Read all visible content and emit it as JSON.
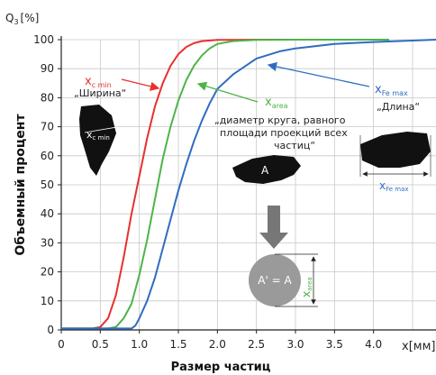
{
  "chart_data": {
    "type": "line",
    "y_axis_label": "Q",
    "y_axis_label_sub": "3",
    "y_axis_unit": "[%]",
    "y_title": "Объемный процент",
    "x_title": "Размер частиц",
    "x_unit_label": "x[мм]",
    "xlim": [
      0,
      4.8
    ],
    "ylim": [
      0,
      100
    ],
    "x_ticks": [
      "0",
      "0.5",
      "1.0",
      "1.5",
      "2.0",
      "2.5",
      "3.0",
      "3.5",
      "4.0"
    ],
    "y_ticks": [
      "0",
      "10",
      "20",
      "30",
      "40",
      "50",
      "60",
      "70",
      "80",
      "90",
      "100"
    ],
    "grid": true,
    "series": [
      {
        "name": "xc min",
        "color": "#e8302f",
        "points": [
          [
            0,
            0.5
          ],
          [
            0.4,
            0.5
          ],
          [
            0.5,
            1
          ],
          [
            0.6,
            4
          ],
          [
            0.7,
            12
          ],
          [
            0.8,
            25
          ],
          [
            0.9,
            40
          ],
          [
            1.0,
            53
          ],
          [
            1.1,
            66
          ],
          [
            1.2,
            77
          ],
          [
            1.3,
            85
          ],
          [
            1.4,
            91
          ],
          [
            1.5,
            95
          ],
          [
            1.6,
            97.5
          ],
          [
            1.7,
            98.8
          ],
          [
            1.8,
            99.5
          ],
          [
            2.0,
            99.9
          ],
          [
            2.5,
            100
          ],
          [
            3.0,
            100
          ],
          [
            4.2,
            100
          ]
        ]
      },
      {
        "name": "xarea",
        "color": "#4cb548",
        "points": [
          [
            0,
            0.5
          ],
          [
            0.6,
            0.5
          ],
          [
            0.7,
            1
          ],
          [
            0.8,
            4
          ],
          [
            0.9,
            9
          ],
          [
            1.0,
            19
          ],
          [
            1.1,
            31
          ],
          [
            1.2,
            45
          ],
          [
            1.3,
            59
          ],
          [
            1.4,
            70
          ],
          [
            1.5,
            79
          ],
          [
            1.6,
            86
          ],
          [
            1.7,
            91
          ],
          [
            1.8,
            94.5
          ],
          [
            1.9,
            97
          ],
          [
            2.0,
            98.5
          ],
          [
            2.2,
            99.5
          ],
          [
            2.5,
            99.9
          ],
          [
            3.0,
            100
          ],
          [
            4.2,
            100
          ]
        ]
      },
      {
        "name": "xFe max",
        "color": "#2f6cc0",
        "points": [
          [
            0,
            0.5
          ],
          [
            0.9,
            0.5
          ],
          [
            0.95,
            1.5
          ],
          [
            1.0,
            4
          ],
          [
            1.1,
            10
          ],
          [
            1.2,
            18
          ],
          [
            1.3,
            28
          ],
          [
            1.4,
            38
          ],
          [
            1.5,
            48
          ],
          [
            1.6,
            57
          ],
          [
            1.7,
            65
          ],
          [
            1.8,
            72
          ],
          [
            1.9,
            78
          ],
          [
            2.0,
            83
          ],
          [
            2.2,
            88
          ],
          [
            2.5,
            93.5
          ],
          [
            2.8,
            96
          ],
          [
            3.0,
            97
          ],
          [
            3.5,
            98.5
          ],
          [
            4.0,
            99.2
          ],
          [
            4.5,
            99.7
          ],
          [
            4.8,
            100
          ]
        ]
      }
    ],
    "annotations": {
      "xcmin_label": "x",
      "xcmin_sub": "c min",
      "xcmin_desc": "„Ширина“",
      "xarea_label": "x",
      "xarea_sub": "area",
      "xarea_desc_1": "„диаметр круга, равного",
      "xarea_desc_2": "площади проекций всех",
      "xarea_desc_3": "частиц“",
      "xfe_label": "x",
      "xfe_sub": "Fe max",
      "xfe_desc": "„Длина“",
      "particle_c_label": "x",
      "particle_c_sub": "c min",
      "particle_a_label": "A",
      "circle_label": "A' = A",
      "circle_side_label": "x",
      "circle_side_sub": "area",
      "particle_fe_label": "x",
      "particle_fe_sub": "Fe max"
    }
  }
}
